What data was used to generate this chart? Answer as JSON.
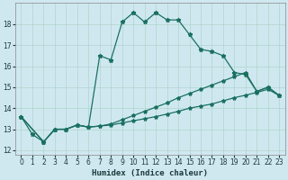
{
  "xlabel": "Humidex (Indice chaleur)",
  "background_color": "#cfe8f0",
  "grid_color": "#b0d4cc",
  "line_color": "#1a7060",
  "xlim": [
    -0.5,
    23.5
  ],
  "ylim": [
    11.8,
    19.0
  ],
  "yticks": [
    12,
    13,
    14,
    15,
    16,
    17,
    18
  ],
  "xticks": [
    0,
    1,
    2,
    3,
    4,
    5,
    6,
    7,
    8,
    9,
    10,
    11,
    12,
    13,
    14,
    15,
    16,
    17,
    18,
    19,
    20,
    21,
    22,
    23
  ],
  "line1_x": [
    0,
    1,
    2,
    3,
    4,
    5,
    6,
    7,
    8,
    9,
    10,
    11,
    12,
    13,
    14,
    15,
    16,
    17,
    18,
    19,
    20,
    21,
    22,
    23
  ],
  "line1_y": [
    13.6,
    12.75,
    12.4,
    13.0,
    13.0,
    13.2,
    13.1,
    16.5,
    16.3,
    18.1,
    18.55,
    18.1,
    18.55,
    18.2,
    18.2,
    17.5,
    16.8,
    16.7,
    16.5,
    15.7,
    15.6,
    14.8,
    15.0,
    14.6
  ],
  "line2_x": [
    0,
    2,
    3,
    4,
    5,
    6,
    7,
    8,
    9,
    10,
    11,
    12,
    13,
    14,
    15,
    16,
    17,
    18,
    19,
    20,
    21,
    22,
    23
  ],
  "line2_y": [
    13.6,
    12.4,
    13.0,
    13.0,
    13.2,
    13.1,
    13.15,
    13.25,
    13.45,
    13.65,
    13.85,
    14.05,
    14.25,
    14.5,
    14.7,
    14.9,
    15.1,
    15.3,
    15.5,
    15.7,
    14.8,
    15.0,
    14.6
  ],
  "line3_x": [
    0,
    2,
    3,
    4,
    5,
    6,
    7,
    8,
    9,
    10,
    11,
    12,
    13,
    14,
    15,
    16,
    17,
    18,
    19,
    20,
    21,
    22,
    23
  ],
  "line3_y": [
    13.6,
    12.4,
    13.0,
    13.0,
    13.2,
    13.1,
    13.15,
    13.2,
    13.3,
    13.4,
    13.5,
    13.6,
    13.72,
    13.85,
    14.0,
    14.1,
    14.2,
    14.35,
    14.5,
    14.62,
    14.75,
    14.9,
    14.6
  ]
}
